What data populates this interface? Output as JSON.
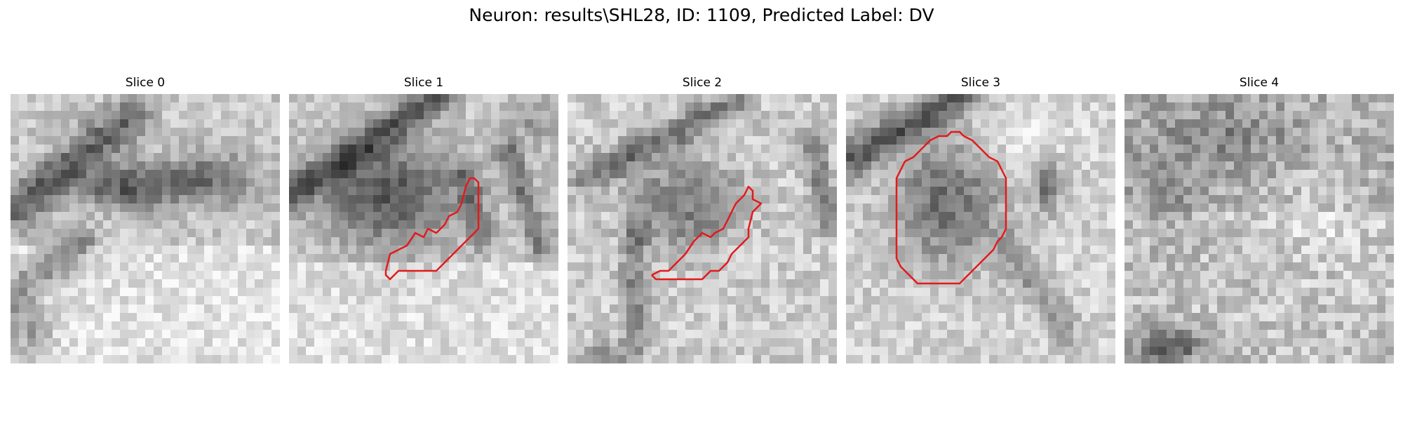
{
  "figure": {
    "title": "Neuron: results\\SHL28, ID: 1109, Predicted Label: DV"
  },
  "panels": [
    {
      "title": "Slice 0"
    },
    {
      "title": "Slice 1"
    },
    {
      "title": "Slice 2"
    },
    {
      "title": "Slice 3"
    },
    {
      "title": "Slice 4"
    }
  ],
  "colors": {
    "contour": "#e31a1c",
    "background": "#ffffff",
    "colormap": "grayscale"
  }
}
